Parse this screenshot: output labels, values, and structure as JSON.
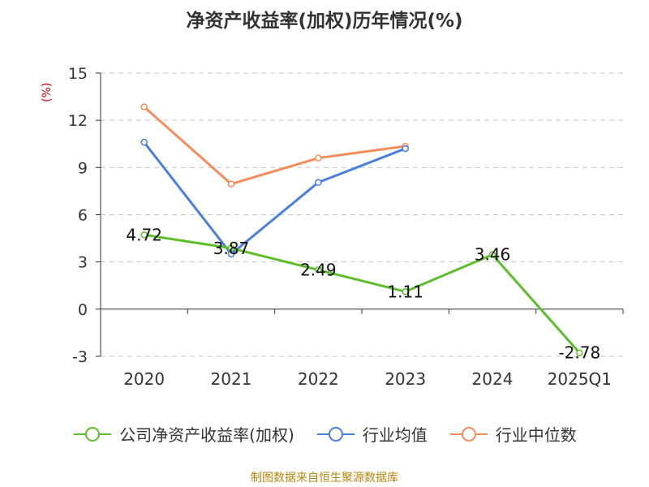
{
  "chart_data": {
    "type": "line",
    "title": "净资产收益率(加权)历年情况(%)",
    "ylabel": "(%)",
    "categories": [
      "2020",
      "2021",
      "2022",
      "2023",
      "2024",
      "2025Q1"
    ],
    "ylim": [
      -3,
      15
    ],
    "yticks": [
      -3,
      0,
      3,
      6,
      9,
      12,
      15
    ],
    "grid": true,
    "legend_position": "bottom",
    "series": [
      {
        "name": "公司净资产收益率(加权)",
        "color": "#5cbe2a",
        "show_labels": true,
        "values": [
          4.72,
          3.87,
          2.49,
          1.11,
          3.46,
          -2.78
        ]
      },
      {
        "name": "行业均值",
        "color": "#4a7fdc",
        "show_labels": false,
        "values": [
          10.6,
          3.5,
          8.05,
          10.2,
          null,
          null
        ]
      },
      {
        "name": "行业中位数",
        "color": "#f58c5a",
        "show_labels": false,
        "values": [
          12.85,
          7.95,
          9.6,
          10.35,
          null,
          null
        ]
      }
    ]
  },
  "footer": "制图数据来自恒生聚源数据库"
}
